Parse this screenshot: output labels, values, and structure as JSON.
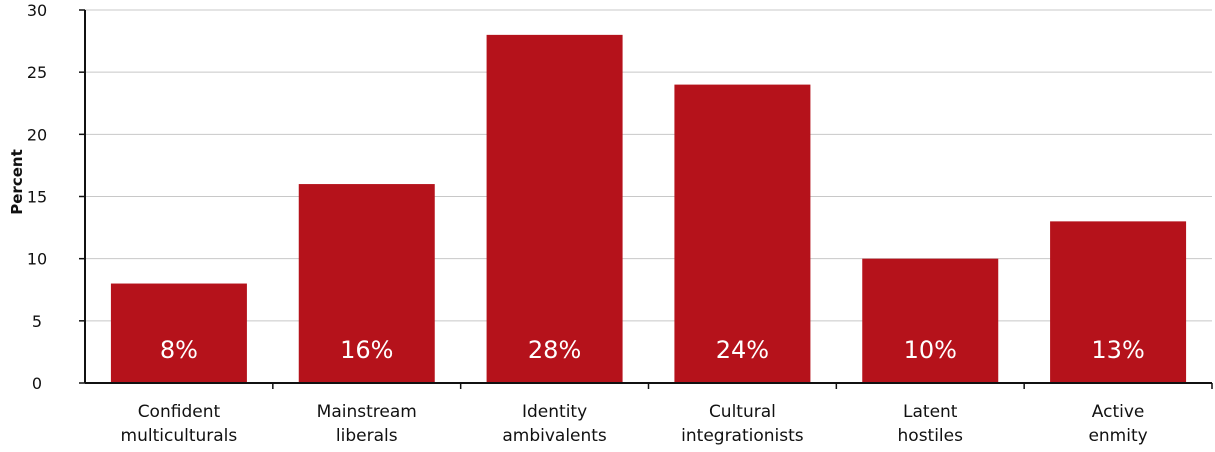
{
  "chart_data": {
    "type": "bar",
    "ylabel": "Percent",
    "xlabel": "",
    "ylim": [
      0,
      30
    ],
    "yticks": [
      0,
      5,
      10,
      15,
      20,
      25,
      30
    ],
    "grid": true,
    "categories": [
      [
        "Confident",
        "multiculturals"
      ],
      [
        "Mainstream",
        "liberals"
      ],
      [
        "Identity",
        "ambivalents"
      ],
      [
        "Cultural",
        "integrationists"
      ],
      [
        "Latent",
        "hostiles"
      ],
      [
        "Active",
        "enmity"
      ]
    ],
    "values": [
      8,
      16,
      28,
      24,
      10,
      13
    ],
    "labels": [
      "8%",
      "16%",
      "28%",
      "24%",
      "10%",
      "13%"
    ],
    "bar_color": "#b5121b",
    "grid_color": "#c8c8c8"
  }
}
